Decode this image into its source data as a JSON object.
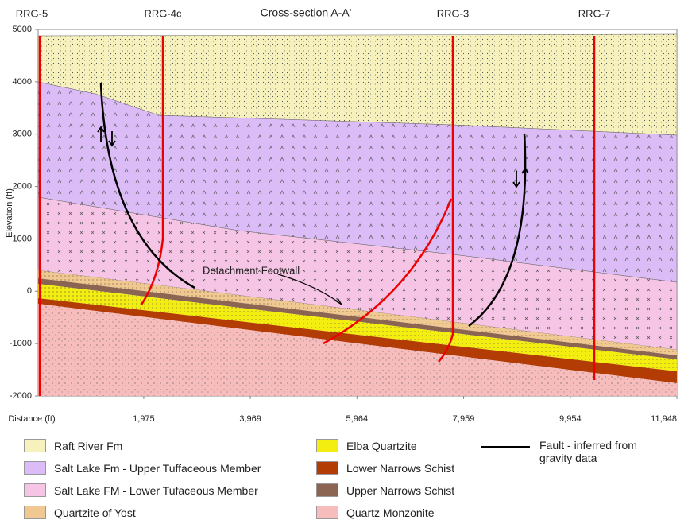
{
  "title": "Cross-section A-A'",
  "wells": [
    "RRG-5",
    "RRG-4c",
    "RRG-3",
    "RRG-7"
  ],
  "annotation": "Detachment Footwall",
  "y_axis": {
    "label": "Elevation (ft)",
    "ylim": [
      -2000,
      5000
    ],
    "ticks": [
      5000,
      4000,
      3000,
      2000,
      1000,
      0,
      -1000,
      -2000
    ]
  },
  "x_axis": {
    "label": "Distance (ft)",
    "xlim": [
      0,
      11948
    ],
    "ticks": [
      {
        "value": 1975,
        "label": "1,975"
      },
      {
        "value": 3969,
        "label": "3,969"
      },
      {
        "value": 5964,
        "label": "5,964"
      },
      {
        "value": 7959,
        "label": "7,959"
      },
      {
        "value": 9954,
        "label": "9,954"
      },
      {
        "value": 11948,
        "label": "11,948"
      }
    ]
  },
  "legend": [
    "Raft River Fm",
    "Salt Lake Fm - Upper Tuffaceous Member",
    "Salt Lake FM - Lower Tufaceous Member",
    "Quartzite of Yost",
    "Elba Quartzite",
    "Lower Narrows Schist",
    "Upper Narrows Schist",
    "Quartz Monzonite"
  ],
  "fault_legend": "Fault - inferred from gravity data"
}
